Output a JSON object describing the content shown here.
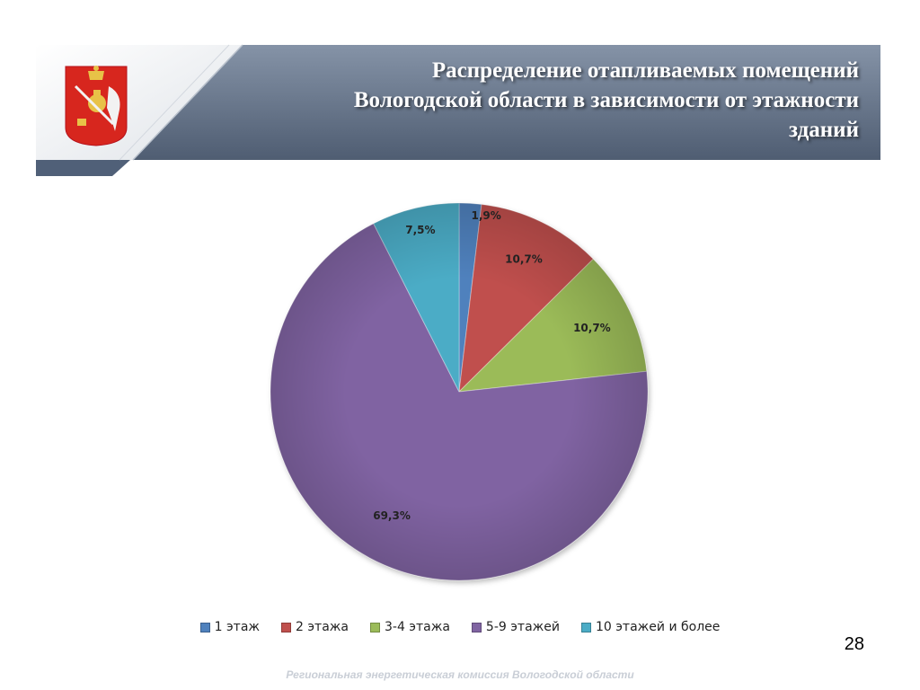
{
  "slide": {
    "title_lines": [
      "Распределение отапливаемых помещений",
      "Вологодской области в зависимости от этажности",
      "зданий"
    ],
    "page_number": "28",
    "footer": "Региональная энергетическая комиссия Вологодской области"
  },
  "chart_data": {
    "type": "pie",
    "title": "",
    "categories": [
      "1 этаж",
      "2 этажа",
      "3-4 этажа",
      "5-9 этажей",
      "10 этажей и более"
    ],
    "values": [
      1.9,
      10.7,
      10.7,
      69.3,
      7.5
    ],
    "labels": [
      "1,9%",
      "10,7%",
      "10,7%",
      "69,3%",
      "7,5%"
    ],
    "colors": [
      "#4f81bd",
      "#c0504d",
      "#9bbb59",
      "#8064a2",
      "#4bacc6"
    ],
    "legend_position": "bottom",
    "start": "top-clockwise"
  }
}
